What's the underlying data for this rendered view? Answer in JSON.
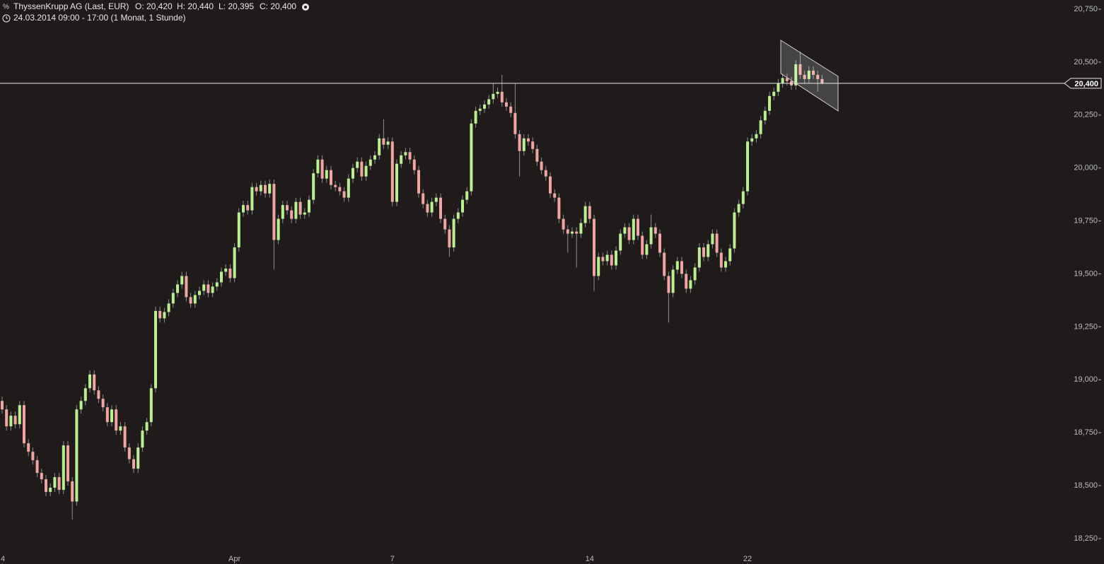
{
  "chart_data": {
    "type": "candlestick",
    "title": "ThyssenKrupp AG (Last, EUR)",
    "ohlc_text": [
      "O: 20,420",
      "H: 20,440",
      "L: 20,395",
      "C: 20,400"
    ],
    "subtitle": "24.03.2014 09:00 - 17:00 (1 Monat, 1 Stunde)",
    "up_color": "#b8f08e",
    "down_color": "#f2a3a3",
    "ylim": [
      18250,
      20750
    ],
    "yticks": [
      {
        "value": 18250,
        "label": "18,250"
      },
      {
        "value": 18500,
        "label": "18,500"
      },
      {
        "value": 18750,
        "label": "18,750"
      },
      {
        "value": 19000,
        "label": "19,000"
      },
      {
        "value": 19250,
        "label": "19,250"
      },
      {
        "value": 19500,
        "label": "19,500"
      },
      {
        "value": 19750,
        "label": "19,750"
      },
      {
        "value": 20000,
        "label": "20,000"
      },
      {
        "value": 20250,
        "label": "20,250"
      },
      {
        "value": 20500,
        "label": "20,500"
      },
      {
        "value": 20750,
        "label": "20,750"
      }
    ],
    "xticks": [
      {
        "value": 0,
        "label": "4"
      },
      {
        "value": 53,
        "label": "Apr"
      },
      {
        "value": 89,
        "label": "7"
      },
      {
        "value": 134,
        "label": "14"
      },
      {
        "value": 170,
        "label": "22"
      }
    ],
    "last_price": {
      "value": 20400,
      "label": "20,400"
    },
    "candles": [
      [
        18900,
        18920,
        18840,
        18860
      ],
      [
        18860,
        18880,
        18760,
        18780
      ],
      [
        18780,
        18850,
        18760,
        18830
      ],
      [
        18830,
        18850,
        18770,
        18790
      ],
      [
        18790,
        18900,
        18770,
        18880
      ],
      [
        18880,
        18900,
        18680,
        18700
      ],
      [
        18700,
        18720,
        18640,
        18660
      ],
      [
        18660,
        18680,
        18600,
        18620
      ],
      [
        18620,
        18640,
        18540,
        18560
      ],
      [
        18560,
        18580,
        18510,
        18530
      ],
      [
        18530,
        18550,
        18450,
        18470
      ],
      [
        18470,
        18510,
        18450,
        18490
      ],
      [
        18490,
        18560,
        18470,
        18540
      ],
      [
        18540,
        18560,
        18460,
        18480
      ],
      [
        18480,
        18710,
        18460,
        18690
      ],
      [
        18690,
        18710,
        18500,
        18520
      ],
      [
        18520,
        18540,
        18340,
        18425
      ],
      [
        18425,
        18880,
        18405,
        18860
      ],
      [
        18860,
        18920,
        18840,
        18900
      ],
      [
        18900,
        18980,
        18880,
        18960
      ],
      [
        18960,
        19045,
        18940,
        19025
      ],
      [
        19025,
        19045,
        18930,
        18950
      ],
      [
        18950,
        18970,
        18890,
        18910
      ],
      [
        18910,
        18930,
        18850,
        18870
      ],
      [
        18870,
        18890,
        18780,
        18800
      ],
      [
        18800,
        18880,
        18780,
        18860
      ],
      [
        18860,
        18880,
        18740,
        18760
      ],
      [
        18760,
        18800,
        18740,
        18780
      ],
      [
        18780,
        18800,
        18660,
        18680
      ],
      [
        18680,
        18700,
        18605,
        18625
      ],
      [
        18625,
        18645,
        18560,
        18580
      ],
      [
        18580,
        18700,
        18560,
        18680
      ],
      [
        18680,
        18780,
        18660,
        18760
      ],
      [
        18760,
        18820,
        18740,
        18800
      ],
      [
        18800,
        18980,
        18780,
        18960
      ],
      [
        18960,
        19345,
        18940,
        19325
      ],
      [
        19325,
        19345,
        19270,
        19290
      ],
      [
        19290,
        19340,
        19270,
        19320
      ],
      [
        19320,
        19380,
        19300,
        19360
      ],
      [
        19360,
        19430,
        19340,
        19410
      ],
      [
        19410,
        19470,
        19390,
        19450
      ],
      [
        19450,
        19510,
        19430,
        19490
      ],
      [
        19490,
        19510,
        19370,
        19390
      ],
      [
        19390,
        19410,
        19340,
        19360
      ],
      [
        19360,
        19420,
        19340,
        19400
      ],
      [
        19400,
        19440,
        19380,
        19420
      ],
      [
        19420,
        19470,
        19400,
        19450
      ],
      [
        19450,
        19470,
        19390,
        19410
      ],
      [
        19410,
        19460,
        19390,
        19440
      ],
      [
        19440,
        19480,
        19420,
        19460
      ],
      [
        19460,
        19530,
        19440,
        19510
      ],
      [
        19510,
        19545,
        19490,
        19525
      ],
      [
        19525,
        19545,
        19460,
        19480
      ],
      [
        19480,
        19645,
        19460,
        19625
      ],
      [
        19625,
        19810,
        19605,
        19790
      ],
      [
        19790,
        19845,
        19770,
        19825
      ],
      [
        19825,
        19845,
        19780,
        19800
      ],
      [
        19800,
        19930,
        19780,
        19910
      ],
      [
        19910,
        19930,
        19870,
        19890
      ],
      [
        19890,
        19940,
        19870,
        19920
      ],
      [
        19920,
        19940,
        19860,
        19880
      ],
      [
        19880,
        19945,
        19860,
        19925
      ],
      [
        19925,
        19945,
        19520,
        19660
      ],
      [
        19660,
        19780,
        19640,
        19760
      ],
      [
        19760,
        19845,
        19740,
        19825
      ],
      [
        19825,
        19845,
        19780,
        19800
      ],
      [
        19800,
        19820,
        19740,
        19760
      ],
      [
        19760,
        19860,
        19740,
        19840
      ],
      [
        19840,
        19860,
        19760,
        19780
      ],
      [
        19780,
        19810,
        19760,
        19790
      ],
      [
        19790,
        19870,
        19770,
        19850
      ],
      [
        19850,
        19995,
        19830,
        19975
      ],
      [
        19975,
        20060,
        19955,
        20040
      ],
      [
        20040,
        20060,
        19930,
        19950
      ],
      [
        19950,
        20010,
        19930,
        19990
      ],
      [
        19990,
        20010,
        19900,
        19920
      ],
      [
        19920,
        19940,
        19890,
        19910
      ],
      [
        19910,
        19930,
        19870,
        19890
      ],
      [
        19890,
        19910,
        19840,
        19860
      ],
      [
        19860,
        19970,
        19840,
        19950
      ],
      [
        19950,
        20020,
        19930,
        20000
      ],
      [
        20000,
        20050,
        19980,
        20030
      ],
      [
        20030,
        20050,
        19940,
        19960
      ],
      [
        19960,
        20030,
        19940,
        20010
      ],
      [
        20010,
        20060,
        19990,
        20040
      ],
      [
        20040,
        20080,
        20020,
        20060
      ],
      [
        20060,
        20160,
        20040,
        20140
      ],
      [
        20140,
        20230,
        20090,
        20110
      ],
      [
        20110,
        20145,
        20090,
        20125
      ],
      [
        20125,
        20145,
        19820,
        19840
      ],
      [
        19840,
        20040,
        19820,
        20020
      ],
      [
        20020,
        20080,
        20000,
        20060
      ],
      [
        20060,
        20095,
        20040,
        20075
      ],
      [
        20075,
        20095,
        20020,
        20040
      ],
      [
        20040,
        20060,
        19970,
        19990
      ],
      [
        19990,
        20010,
        19860,
        19880
      ],
      [
        19880,
        19900,
        19810,
        19830
      ],
      [
        19830,
        19850,
        19770,
        19790
      ],
      [
        19790,
        19860,
        19770,
        19840
      ],
      [
        19840,
        19880,
        19820,
        19860
      ],
      [
        19860,
        19880,
        19740,
        19760
      ],
      [
        19760,
        19780,
        19690,
        19710
      ],
      [
        19710,
        19730,
        19580,
        19625
      ],
      [
        19625,
        19780,
        19605,
        19760
      ],
      [
        19760,
        19810,
        19740,
        19790
      ],
      [
        19790,
        19870,
        19770,
        19850
      ],
      [
        19850,
        19910,
        19830,
        19890
      ],
      [
        19890,
        20230,
        19870,
        20210
      ],
      [
        20210,
        20290,
        20190,
        20270
      ],
      [
        20270,
        20300,
        20250,
        20280
      ],
      [
        20280,
        20320,
        20260,
        20300
      ],
      [
        20300,
        20345,
        20280,
        20325
      ],
      [
        20325,
        20400,
        20305,
        20350
      ],
      [
        20350,
        20380,
        20330,
        20360
      ],
      [
        20360,
        20440,
        20290,
        20310
      ],
      [
        20310,
        20330,
        20270,
        20290
      ],
      [
        20290,
        20310,
        20240,
        20260
      ],
      [
        20260,
        20400,
        20140,
        20160
      ],
      [
        20160,
        20180,
        19960,
        20080
      ],
      [
        20080,
        20160,
        20060,
        20140
      ],
      [
        20140,
        20160,
        20105,
        20125
      ],
      [
        20125,
        20145,
        20070,
        20090
      ],
      [
        20090,
        20110,
        20010,
        20030
      ],
      [
        20030,
        20050,
        19970,
        19990
      ],
      [
        19990,
        20010,
        19940,
        19960
      ],
      [
        19960,
        19980,
        19860,
        19880
      ],
      [
        19880,
        19900,
        19840,
        19860
      ],
      [
        19860,
        19880,
        19740,
        19760
      ],
      [
        19760,
        19780,
        19690,
        19710
      ],
      [
        19710,
        19730,
        19600,
        19690
      ],
      [
        19690,
        19720,
        19670,
        19700
      ],
      [
        19700,
        19720,
        19530,
        19690
      ],
      [
        19690,
        19760,
        19670,
        19740
      ],
      [
        19740,
        19840,
        19720,
        19820
      ],
      [
        19820,
        19840,
        19740,
        19760
      ],
      [
        19760,
        19780,
        19420,
        19490
      ],
      [
        19490,
        19600,
        19470,
        19580
      ],
      [
        19580,
        19600,
        19540,
        19560
      ],
      [
        19560,
        19610,
        19540,
        19590
      ],
      [
        19590,
        19610,
        19520,
        19540
      ],
      [
        19540,
        19630,
        19520,
        19610
      ],
      [
        19610,
        19710,
        19590,
        19690
      ],
      [
        19690,
        19740,
        19670,
        19720
      ],
      [
        19720,
        19740,
        19640,
        19660
      ],
      [
        19660,
        19780,
        19640,
        19760
      ],
      [
        19760,
        19780,
        19660,
        19680
      ],
      [
        19680,
        19700,
        19570,
        19590
      ],
      [
        19590,
        19660,
        19570,
        19640
      ],
      [
        19640,
        19780,
        19620,
        19720
      ],
      [
        19720,
        19740,
        19670,
        19690
      ],
      [
        19690,
        19710,
        19580,
        19600
      ],
      [
        19600,
        19620,
        19470,
        19490
      ],
      [
        19490,
        19510,
        19270,
        19410
      ],
      [
        19410,
        19540,
        19390,
        19520
      ],
      [
        19520,
        19580,
        19500,
        19560
      ],
      [
        19560,
        19580,
        19480,
        19500
      ],
      [
        19500,
        19520,
        19410,
        19430
      ],
      [
        19430,
        19490,
        19410,
        19470
      ],
      [
        19470,
        19550,
        19450,
        19530
      ],
      [
        19530,
        19645,
        19510,
        19625
      ],
      [
        19625,
        19645,
        19560,
        19580
      ],
      [
        19580,
        19660,
        19560,
        19640
      ],
      [
        19640,
        19710,
        19620,
        19690
      ],
      [
        19690,
        19710,
        19580,
        19600
      ],
      [
        19600,
        19620,
        19510,
        19530
      ],
      [
        19530,
        19580,
        19510,
        19560
      ],
      [
        19560,
        19640,
        19540,
        19620
      ],
      [
        19620,
        19810,
        19600,
        19790
      ],
      [
        19790,
        19850,
        19770,
        19830
      ],
      [
        19830,
        19910,
        19810,
        19890
      ],
      [
        19890,
        20145,
        19870,
        20125
      ],
      [
        20125,
        20160,
        20105,
        20140
      ],
      [
        20140,
        20180,
        20120,
        20160
      ],
      [
        20160,
        20245,
        20140,
        20225
      ],
      [
        20225,
        20290,
        20205,
        20270
      ],
      [
        20270,
        20360,
        20250,
        20340
      ],
      [
        20340,
        20380,
        20320,
        20360
      ],
      [
        20360,
        20420,
        20340,
        20400
      ],
      [
        20400,
        20445,
        20380,
        20425
      ],
      [
        20425,
        20445,
        20390,
        20410
      ],
      [
        20410,
        20430,
        20370,
        20390
      ],
      [
        20390,
        20510,
        20370,
        20490
      ],
      [
        20490,
        20550,
        20420,
        20440
      ],
      [
        20440,
        20460,
        20400,
        20420
      ],
      [
        20420,
        20480,
        20400,
        20460
      ],
      [
        20460,
        20480,
        20420,
        20440
      ],
      [
        20440,
        20460,
        20360,
        20420
      ],
      [
        20420,
        20440,
        20395,
        20400
      ]
    ]
  }
}
